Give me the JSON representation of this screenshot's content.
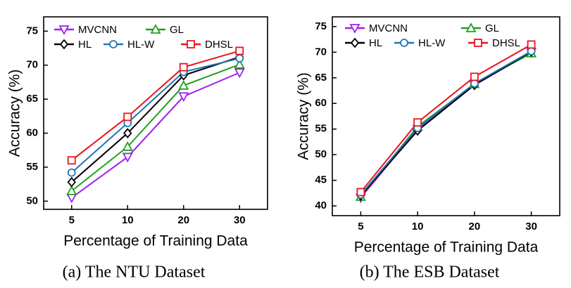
{
  "chart_data": [
    {
      "type": "line",
      "caption": "(a) The NTU Dataset",
      "xlabel": "Percentage of Training Data",
      "ylabel": "Accuracy (%)",
      "categories": [
        "5",
        "10",
        "20",
        "30"
      ],
      "ylim": [
        48.8,
        77.1
      ],
      "yticks": [
        50,
        55,
        60,
        65,
        70,
        75
      ],
      "series": [
        {
          "name": "MVCNN",
          "color": "#a020f0",
          "marker": "triangle-down",
          "values": [
            50.5,
            56.5,
            65.4,
            68.9
          ]
        },
        {
          "name": "GL",
          "color": "#20a020",
          "marker": "triangle-up",
          "values": [
            51.5,
            58.0,
            67.0,
            70.1
          ]
        },
        {
          "name": "HL",
          "color": "#000000",
          "marker": "diamond",
          "values": [
            52.8,
            60.0,
            68.5,
            71.2
          ]
        },
        {
          "name": "HL-W",
          "color": "#1f77b4",
          "marker": "circle",
          "values": [
            54.2,
            61.5,
            69.0,
            71.0
          ]
        },
        {
          "name": "DHSL",
          "color": "#e8141c",
          "marker": "square",
          "values": [
            56.0,
            62.4,
            69.7,
            72.1
          ]
        }
      ]
    },
    {
      "type": "line",
      "caption": "(b) The ESB Dataset",
      "xlabel": "Percentage of Training Data",
      "ylabel": "Accuracy (%)",
      "categories": [
        "5",
        "10",
        "20",
        "30"
      ],
      "ylim": [
        38.1,
        76.9
      ],
      "yticks": [
        40,
        45,
        50,
        55,
        60,
        65,
        70,
        75
      ],
      "series": [
        {
          "name": "MVCNN",
          "color": "#a020f0",
          "marker": "triangle-down",
          "values": [
            41.6,
            55.0,
            63.6,
            70.0
          ]
        },
        {
          "name": "GL",
          "color": "#20a020",
          "marker": "triangle-up",
          "values": [
            41.8,
            55.5,
            63.8,
            69.8
          ]
        },
        {
          "name": "HL",
          "color": "#000000",
          "marker": "diamond",
          "values": [
            42.0,
            54.7,
            63.6,
            70.1
          ]
        },
        {
          "name": "HL-W",
          "color": "#1f77b4",
          "marker": "circle",
          "values": [
            42.2,
            55.2,
            63.9,
            70.2
          ]
        },
        {
          "name": "DHSL",
          "color": "#e8141c",
          "marker": "square",
          "values": [
            42.7,
            56.3,
            65.2,
            71.5
          ]
        }
      ]
    }
  ]
}
